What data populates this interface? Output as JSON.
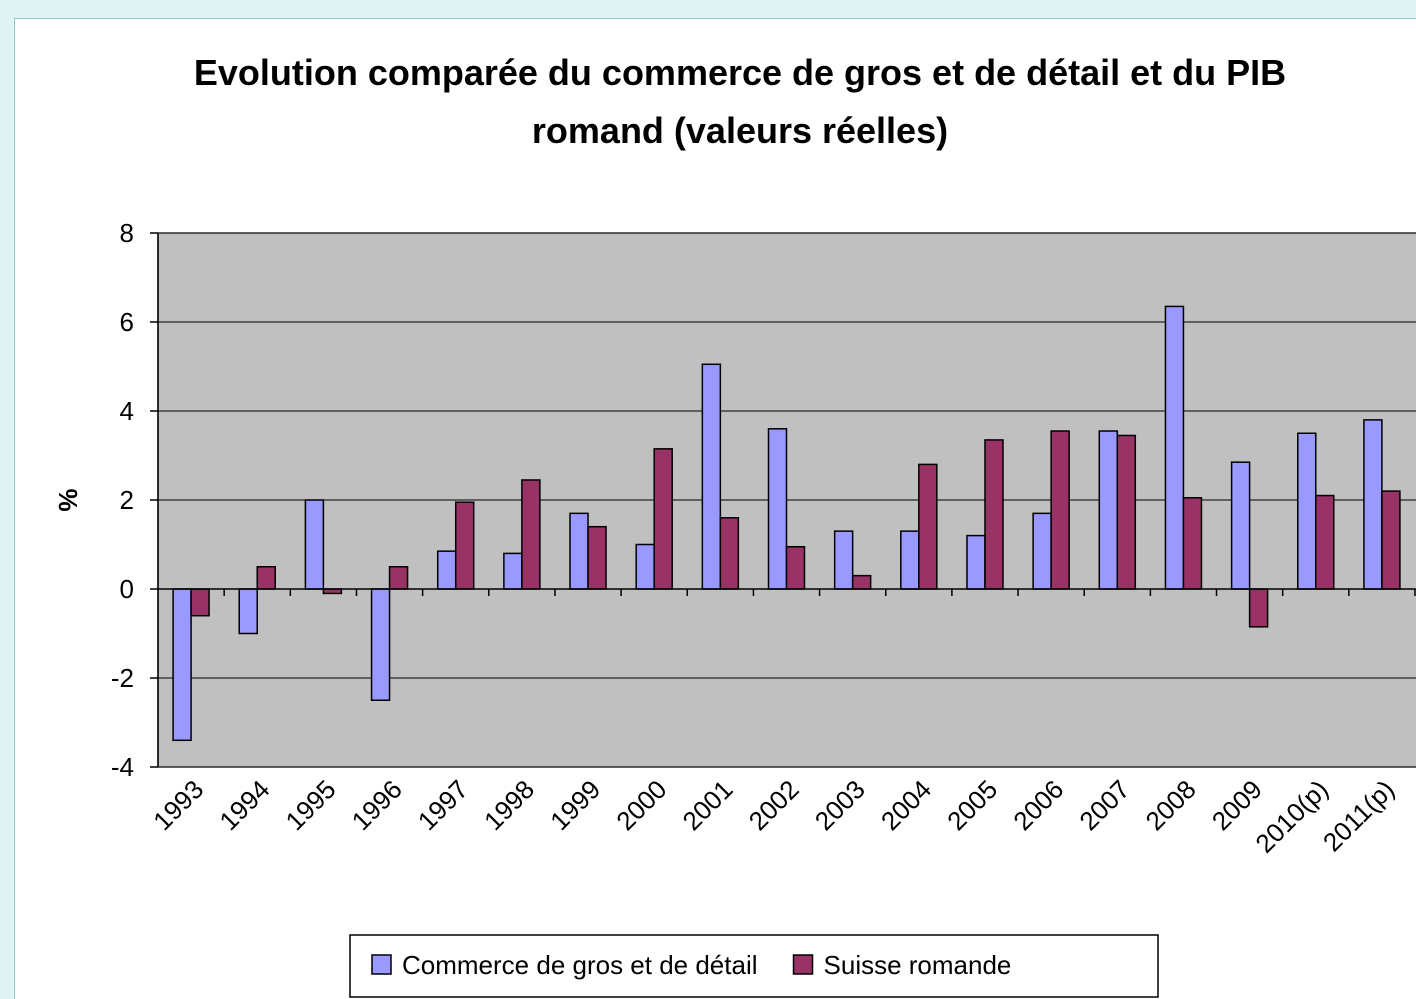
{
  "chart_data": {
    "type": "bar",
    "title": "Evolution comparée du commerce de gros et de détail et du PIB romand (valeurs réelles)",
    "y_label": "%",
    "categories": [
      "1993",
      "1994",
      "1995",
      "1996",
      "1997",
      "1998",
      "1999",
      "2000",
      "2001",
      "2002",
      "2003",
      "2004",
      "2005",
      "2006",
      "2007",
      "2008",
      "2009",
      "2010(p)",
      "2011(p)"
    ],
    "series": [
      {
        "name": "Commerce de gros et de détail",
        "color": "#9999ff",
        "values": [
          -3.4,
          -1.0,
          2.0,
          -2.5,
          0.85,
          0.8,
          1.7,
          1.0,
          5.05,
          3.6,
          1.3,
          1.3,
          1.2,
          1.7,
          3.55,
          6.35,
          2.85,
          3.5,
          3.8
        ]
      },
      {
        "name": "Suisse romande",
        "color": "#993366",
        "values": [
          -0.6,
          0.5,
          -0.1,
          0.5,
          1.95,
          2.45,
          1.4,
          3.15,
          1.6,
          0.95,
          0.3,
          2.8,
          3.35,
          3.55,
          3.45,
          2.05,
          -0.85,
          2.1,
          2.2
        ]
      }
    ],
    "ylim": [
      -4,
      8
    ],
    "yticks": [
      -4,
      -2,
      0,
      2,
      4,
      6,
      8
    ],
    "grid": true,
    "legend": "bottom"
  }
}
